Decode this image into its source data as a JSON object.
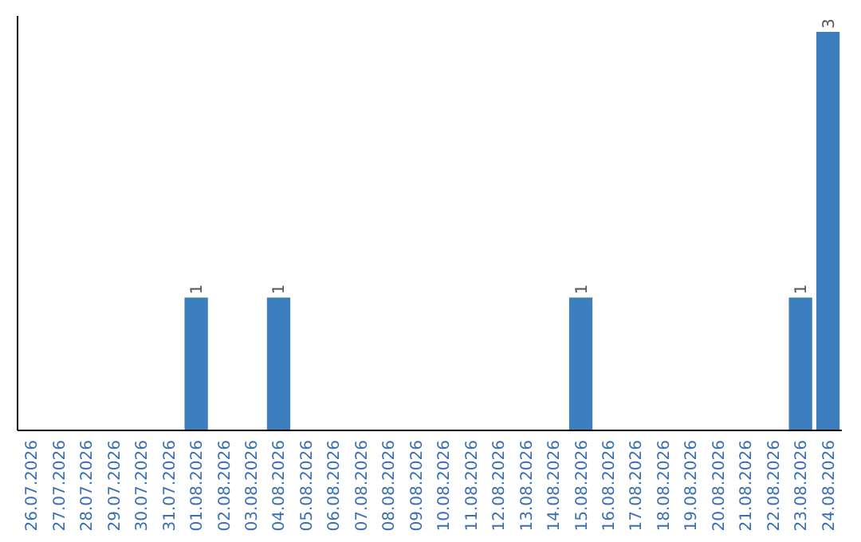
{
  "chart_data": {
    "type": "bar",
    "categories": [
      "26.07.2026",
      "27.07.2026",
      "28.07.2026",
      "29.07.2026",
      "30.07.2026",
      "31.07.2026",
      "01.08.2026",
      "02.08.2026",
      "03.08.2026",
      "04.08.2026",
      "05.08.2026",
      "06.08.2026",
      "07.08.2026",
      "08.08.2026",
      "09.08.2026",
      "10.08.2026",
      "11.08.2026",
      "12.08.2026",
      "13.08.2026",
      "14.08.2026",
      "15.08.2026",
      "16.08.2026",
      "17.08.2026",
      "18.08.2026",
      "19.08.2026",
      "20.08.2026",
      "21.08.2026",
      "22.08.2026",
      "23.08.2026",
      "24.08.2026"
    ],
    "values": [
      0,
      0,
      0,
      0,
      0,
      0,
      1,
      0,
      0,
      1,
      0,
      0,
      0,
      0,
      0,
      0,
      0,
      0,
      0,
      0,
      1,
      0,
      0,
      0,
      0,
      0,
      0,
      0,
      1,
      3
    ],
    "value_labels": [
      null,
      null,
      null,
      null,
      null,
      null,
      "1",
      null,
      null,
      "1",
      null,
      null,
      null,
      null,
      null,
      null,
      null,
      null,
      null,
      null,
      "1",
      null,
      null,
      null,
      null,
      null,
      null,
      null,
      "1",
      "3"
    ],
    "color": "#3d7ebf",
    "tick_labels": "x",
    "grid": false
  }
}
